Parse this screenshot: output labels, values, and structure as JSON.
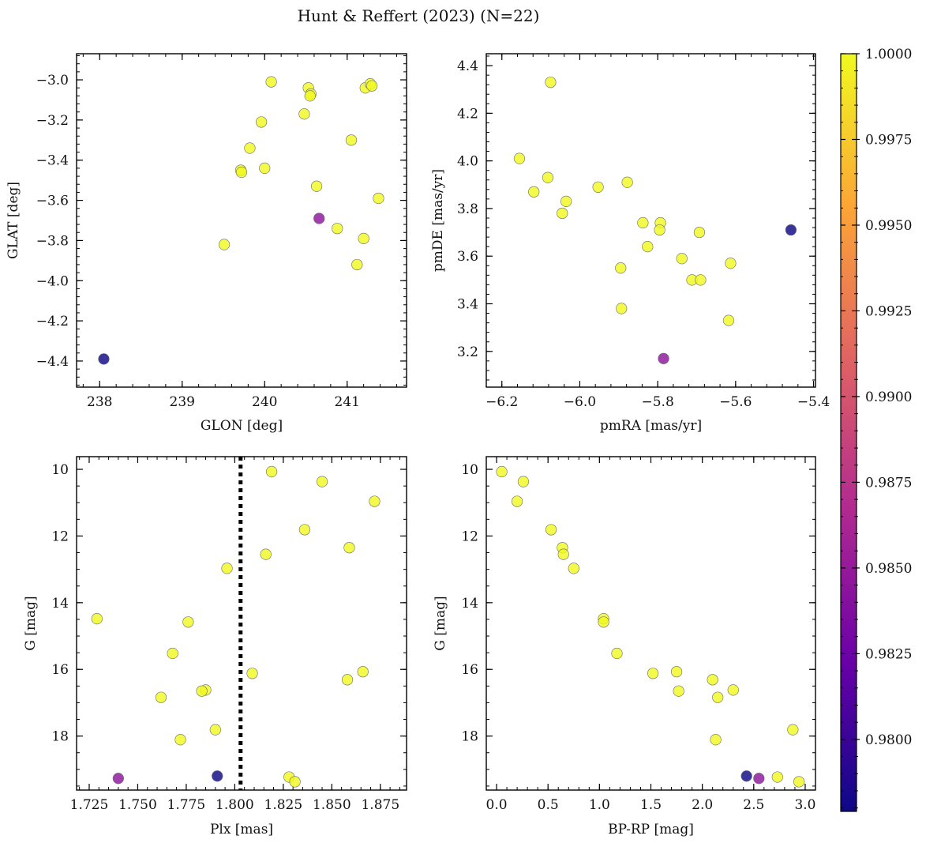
{
  "figure": {
    "suptitle": "Hunt & Reffert (2023) (N=22)"
  },
  "colorbar": {
    "min": 0.9779,
    "max": 1.0,
    "ticks": [
      0.98,
      0.9825,
      0.985,
      0.9875,
      0.99,
      0.9925,
      0.995,
      0.9975,
      1.0
    ],
    "tick_labels": [
      "0.9800",
      "0.9825",
      "0.9850",
      "0.9875",
      "0.9900",
      "0.9925",
      "0.9950",
      "0.9975",
      "1.0000"
    ],
    "colormap": "plasma",
    "colors": [
      "#0d0887",
      "#6a00a8",
      "#b12a90",
      "#e16462",
      "#fca636",
      "#f0f921"
    ]
  },
  "chart_data": [
    {
      "type": "scatter",
      "xlabel": "GLON [deg]",
      "ylabel": "GLAT [deg]",
      "xlim": [
        237.72,
        241.72
      ],
      "ylim": [
        -4.53,
        -2.87
      ],
      "xticks": [
        238,
        239,
        240,
        241
      ],
      "xtick_labels": [
        "238",
        "239",
        "240",
        "241"
      ],
      "yticks": [
        -4.4,
        -4.2,
        -4.0,
        -3.8,
        -3.6,
        -3.4,
        -3.2,
        -3.0
      ],
      "ytick_labels": [
        "−4.4",
        "−4.2",
        "−4.0",
        "−3.8",
        "−3.6",
        "−3.4",
        "−3.2",
        "−3.0"
      ],
      "points": [
        {
          "x": 240.08,
          "y": -3.01,
          "p": 1.0
        },
        {
          "x": 240.53,
          "y": -3.04,
          "p": 1.0
        },
        {
          "x": 240.56,
          "y": -3.07,
          "p": 1.0
        },
        {
          "x": 240.55,
          "y": -3.08,
          "p": 1.0
        },
        {
          "x": 241.22,
          "y": -3.04,
          "p": 1.0
        },
        {
          "x": 241.28,
          "y": -3.02,
          "p": 1.0
        },
        {
          "x": 241.3,
          "y": -3.03,
          "p": 1.0
        },
        {
          "x": 240.48,
          "y": -3.17,
          "p": 1.0
        },
        {
          "x": 239.96,
          "y": -3.21,
          "p": 1.0
        },
        {
          "x": 241.05,
          "y": -3.3,
          "p": 1.0
        },
        {
          "x": 239.82,
          "y": -3.34,
          "p": 1.0
        },
        {
          "x": 239.71,
          "y": -3.45,
          "p": 1.0
        },
        {
          "x": 239.72,
          "y": -3.46,
          "p": 1.0
        },
        {
          "x": 240.0,
          "y": -3.44,
          "p": 1.0
        },
        {
          "x": 240.63,
          "y": -3.53,
          "p": 1.0
        },
        {
          "x": 241.38,
          "y": -3.59,
          "p": 1.0
        },
        {
          "x": 240.66,
          "y": -3.69,
          "p": 0.9845
        },
        {
          "x": 240.88,
          "y": -3.74,
          "p": 1.0
        },
        {
          "x": 241.2,
          "y": -3.79,
          "p": 1.0
        },
        {
          "x": 239.51,
          "y": -3.82,
          "p": 1.0
        },
        {
          "x": 241.12,
          "y": -3.92,
          "p": 1.0
        },
        {
          "x": 238.05,
          "y": -4.39,
          "p": 0.978
        }
      ]
    },
    {
      "type": "scatter",
      "xlabel": "pmRA [mas/yr]",
      "ylabel": "pmDE [mas/yr]",
      "xlim": [
        -6.24,
        -5.395
      ],
      "ylim": [
        3.05,
        4.45
      ],
      "xticks": [
        -6.2,
        -6.0,
        -5.8,
        -5.6,
        -5.4
      ],
      "xtick_labels": [
        "−6.2",
        "−6.0",
        "−5.8",
        "−5.6",
        "−5.4"
      ],
      "yticks": [
        3.2,
        3.4,
        3.6,
        3.8,
        4.0,
        4.2,
        4.4
      ],
      "ytick_labels": [
        "3.2",
        "3.4",
        "3.6",
        "3.8",
        "4.0",
        "4.2",
        "4.4"
      ],
      "points": [
        {
          "x": -6.075,
          "y": 4.33,
          "p": 1.0
        },
        {
          "x": -6.155,
          "y": 4.01,
          "p": 1.0
        },
        {
          "x": -6.082,
          "y": 3.93,
          "p": 1.0
        },
        {
          "x": -6.118,
          "y": 3.87,
          "p": 1.0
        },
        {
          "x": -6.035,
          "y": 3.83,
          "p": 1.0
        },
        {
          "x": -6.045,
          "y": 3.78,
          "p": 1.0
        },
        {
          "x": -5.953,
          "y": 3.89,
          "p": 1.0
        },
        {
          "x": -5.878,
          "y": 3.91,
          "p": 1.0
        },
        {
          "x": -5.838,
          "y": 3.74,
          "p": 1.0
        },
        {
          "x": -5.793,
          "y": 3.74,
          "p": 1.0
        },
        {
          "x": -5.795,
          "y": 3.71,
          "p": 1.0
        },
        {
          "x": -5.693,
          "y": 3.7,
          "p": 1.0
        },
        {
          "x": -5.826,
          "y": 3.64,
          "p": 1.0
        },
        {
          "x": -5.738,
          "y": 3.59,
          "p": 1.0
        },
        {
          "x": -5.613,
          "y": 3.57,
          "p": 1.0
        },
        {
          "x": -5.895,
          "y": 3.55,
          "p": 1.0
        },
        {
          "x": -5.712,
          "y": 3.5,
          "p": 1.0
        },
        {
          "x": -5.69,
          "y": 3.5,
          "p": 1.0
        },
        {
          "x": -5.893,
          "y": 3.38,
          "p": 1.0
        },
        {
          "x": -5.618,
          "y": 3.33,
          "p": 1.0
        },
        {
          "x": -5.458,
          "y": 3.71,
          "p": 0.978
        },
        {
          "x": -5.785,
          "y": 3.17,
          "p": 0.9845
        }
      ]
    },
    {
      "type": "scatter",
      "xlabel": "Plx [mas]",
      "ylabel": "G [mag]",
      "xlim": [
        1.7185,
        1.8885
      ],
      "ylim": [
        19.62,
        9.62
      ],
      "yinverted": true,
      "vline": {
        "x": 1.803,
        "style": "dotted"
      },
      "xticks": [
        1.725,
        1.75,
        1.775,
        1.8,
        1.825,
        1.85,
        1.875
      ],
      "xtick_labels": [
        "1.725",
        "1.750",
        "1.775",
        "1.800",
        "1.825",
        "1.850",
        "1.875"
      ],
      "yticks": [
        10,
        12,
        14,
        16,
        18
      ],
      "ytick_labels": [
        "10",
        "12",
        "14",
        "16",
        "18"
      ],
      "points": [
        {
          "x": 1.819,
          "y": 10.07,
          "p": 1.0
        },
        {
          "x": 1.845,
          "y": 10.37,
          "p": 1.0
        },
        {
          "x": 1.872,
          "y": 10.96,
          "p": 1.0
        },
        {
          "x": 1.836,
          "y": 11.81,
          "p": 1.0
        },
        {
          "x": 1.859,
          "y": 12.35,
          "p": 1.0
        },
        {
          "x": 1.816,
          "y": 12.55,
          "p": 1.0
        },
        {
          "x": 1.796,
          "y": 12.97,
          "p": 1.0
        },
        {
          "x": 1.729,
          "y": 14.48,
          "p": 1.0
        },
        {
          "x": 1.776,
          "y": 14.58,
          "p": 1.0
        },
        {
          "x": 1.768,
          "y": 15.52,
          "p": 1.0
        },
        {
          "x": 1.809,
          "y": 16.12,
          "p": 1.0
        },
        {
          "x": 1.866,
          "y": 16.07,
          "p": 1.0
        },
        {
          "x": 1.858,
          "y": 16.31,
          "p": 1.0
        },
        {
          "x": 1.762,
          "y": 16.84,
          "p": 1.0
        },
        {
          "x": 1.785,
          "y": 16.62,
          "p": 1.0
        },
        {
          "x": 1.783,
          "y": 16.65,
          "p": 1.0
        },
        {
          "x": 1.79,
          "y": 17.81,
          "p": 1.0
        },
        {
          "x": 1.772,
          "y": 18.11,
          "p": 1.0
        },
        {
          "x": 1.828,
          "y": 19.23,
          "p": 1.0
        },
        {
          "x": 1.831,
          "y": 19.37,
          "p": 1.0
        },
        {
          "x": 1.791,
          "y": 19.2,
          "p": 0.978
        },
        {
          "x": 1.74,
          "y": 19.27,
          "p": 0.9845
        }
      ]
    },
    {
      "type": "scatter",
      "xlabel": "BP-RP [mag]",
      "ylabel": "G [mag]",
      "xlim": [
        -0.1,
        3.1
      ],
      "ylim": [
        19.62,
        9.62
      ],
      "yinverted": true,
      "xticks": [
        0.0,
        0.5,
        1.0,
        1.5,
        2.0,
        2.5,
        3.0
      ],
      "xtick_labels": [
        "0.0",
        "0.5",
        "1.0",
        "1.5",
        "2.0",
        "2.5",
        "3.0"
      ],
      "yticks": [
        10,
        12,
        14,
        16,
        18
      ],
      "ytick_labels": [
        "10",
        "12",
        "14",
        "16",
        "18"
      ],
      "points": [
        {
          "x": 0.05,
          "y": 10.07,
          "p": 1.0
        },
        {
          "x": 0.26,
          "y": 10.37,
          "p": 1.0
        },
        {
          "x": 0.2,
          "y": 10.96,
          "p": 1.0
        },
        {
          "x": 0.53,
          "y": 11.81,
          "p": 1.0
        },
        {
          "x": 0.64,
          "y": 12.35,
          "p": 1.0
        },
        {
          "x": 0.65,
          "y": 12.55,
          "p": 1.0
        },
        {
          "x": 0.75,
          "y": 12.97,
          "p": 1.0
        },
        {
          "x": 1.04,
          "y": 14.48,
          "p": 1.0
        },
        {
          "x": 1.04,
          "y": 14.58,
          "p": 1.0
        },
        {
          "x": 1.17,
          "y": 15.52,
          "p": 1.0
        },
        {
          "x": 1.52,
          "y": 16.12,
          "p": 1.0
        },
        {
          "x": 1.75,
          "y": 16.07,
          "p": 1.0
        },
        {
          "x": 1.77,
          "y": 16.65,
          "p": 1.0
        },
        {
          "x": 2.1,
          "y": 16.31,
          "p": 1.0
        },
        {
          "x": 2.15,
          "y": 16.84,
          "p": 1.0
        },
        {
          "x": 2.3,
          "y": 16.62,
          "p": 1.0
        },
        {
          "x": 2.13,
          "y": 18.11,
          "p": 1.0
        },
        {
          "x": 2.88,
          "y": 17.81,
          "p": 1.0
        },
        {
          "x": 2.73,
          "y": 19.23,
          "p": 1.0
        },
        {
          "x": 2.94,
          "y": 19.37,
          "p": 1.0
        },
        {
          "x": 2.43,
          "y": 19.2,
          "p": 0.978
        },
        {
          "x": 2.55,
          "y": 19.27,
          "p": 0.9845
        }
      ]
    }
  ]
}
